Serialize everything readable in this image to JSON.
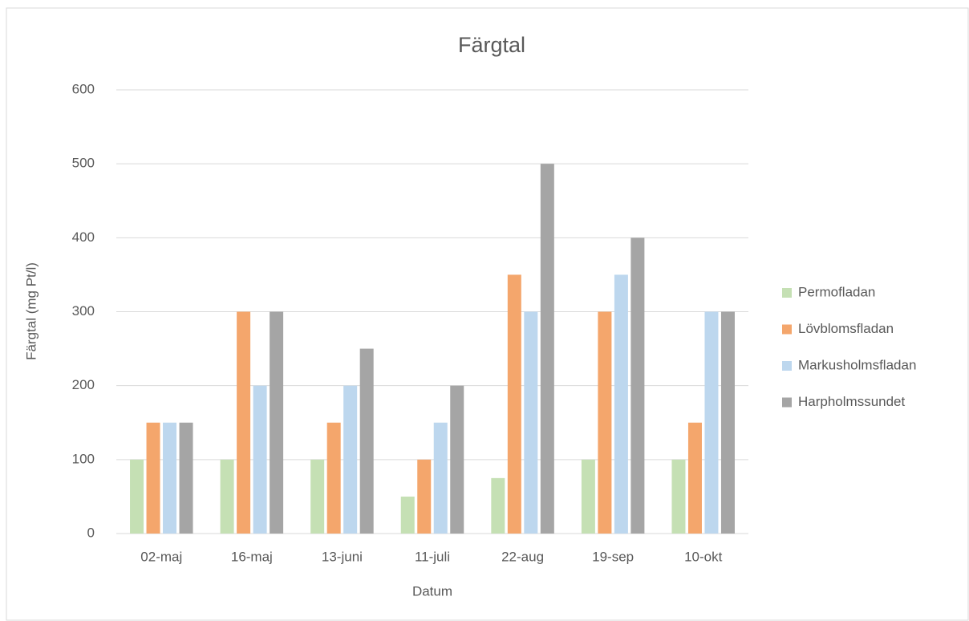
{
  "chart_data": {
    "type": "bar",
    "title": "Färgtal",
    "x_label": "Datum",
    "y_label": "Färgtal (mg Pt/l)",
    "categories": [
      "02-maj",
      "16-maj",
      "13-juni",
      "11-juli",
      "22-aug",
      "19-sep",
      "10-okt"
    ],
    "series": [
      {
        "name": "Permofladan",
        "color": "#c5e0b4",
        "values": [
          100,
          100,
          100,
          50,
          75,
          100,
          100
        ]
      },
      {
        "name": "Lövblomsfladan",
        "color": "#f4a66c",
        "values": [
          150,
          300,
          150,
          100,
          350,
          300,
          150
        ]
      },
      {
        "name": "Markusholmsfladan",
        "color": "#bdd7ee",
        "values": [
          150,
          200,
          200,
          150,
          300,
          350,
          300
        ]
      },
      {
        "name": "Harpholmssundet",
        "color": "#a5a5a5",
        "values": [
          150,
          300,
          250,
          200,
          500,
          400,
          300
        ]
      }
    ],
    "ylim": [
      0,
      600
    ],
    "yticks": [
      0,
      100,
      200,
      300,
      400,
      500,
      600
    ],
    "grid": true,
    "legend": "right"
  }
}
